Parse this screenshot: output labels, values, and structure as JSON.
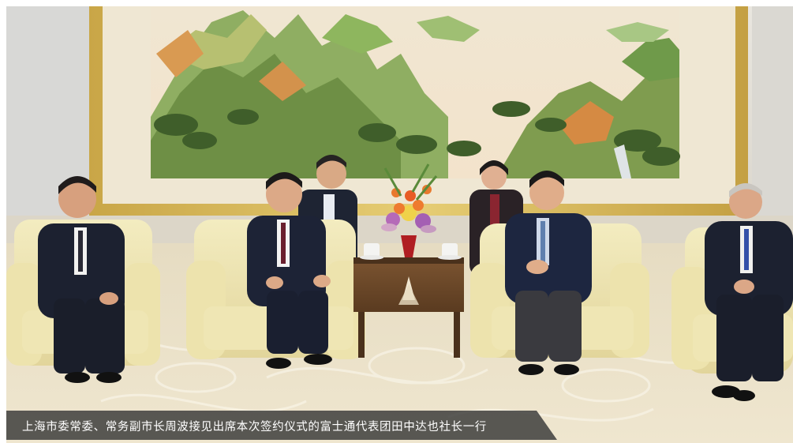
{
  "photo": {
    "caption": "上海市委常委、常务副市长周波接见出席本次签约仪式的富士通代表团田中达也社长一行",
    "caption_bg": "#3a3a3a",
    "caption_color": "#ffffff"
  }
}
